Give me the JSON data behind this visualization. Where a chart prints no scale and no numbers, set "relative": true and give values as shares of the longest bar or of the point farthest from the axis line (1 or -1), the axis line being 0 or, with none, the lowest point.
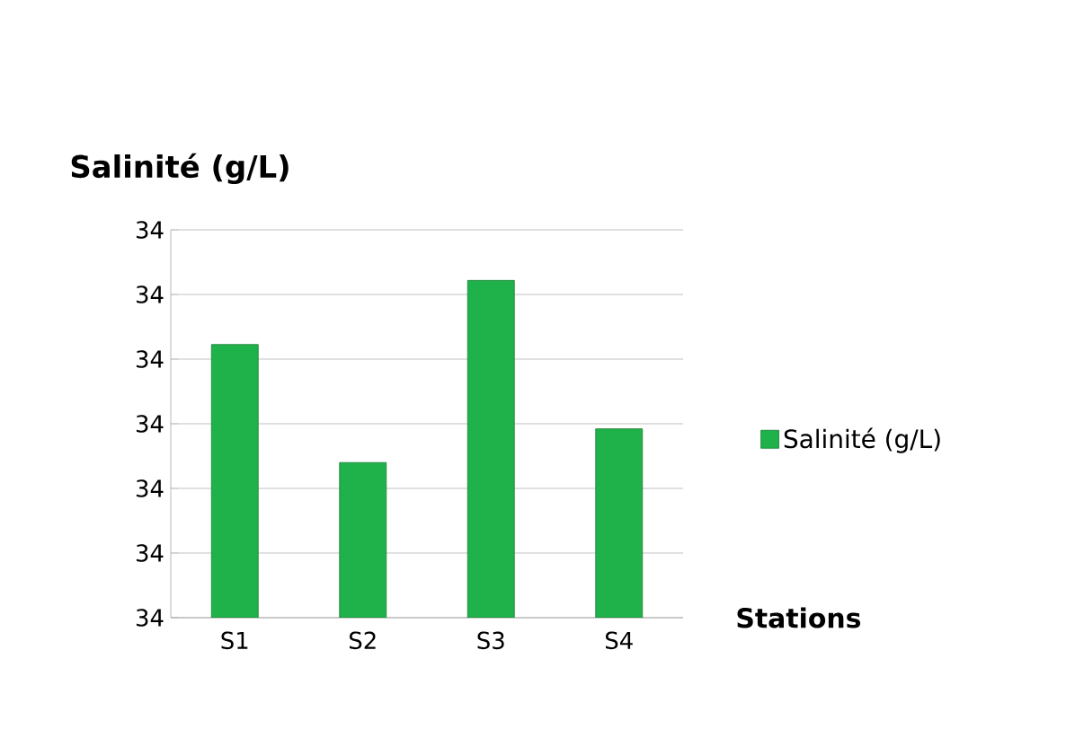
{
  "chart_data": {
    "type": "bar",
    "title": "Salinité (g/L)",
    "xlabel": "Stations",
    "categories": [
      "S1",
      "S2",
      "S3",
      "S4"
    ],
    "series": [
      {
        "name": "Salinité (g/L)",
        "color": "#1fb24a",
        "values": [
          0.81,
          0.46,
          1,
          0.56
        ]
      }
    ],
    "relative": true,
    "annotations": [
      "34",
      "34",
      "34",
      "34",
      "34",
      "34",
      "34"
    ],
    "grid": "y",
    "legend": "right"
  }
}
